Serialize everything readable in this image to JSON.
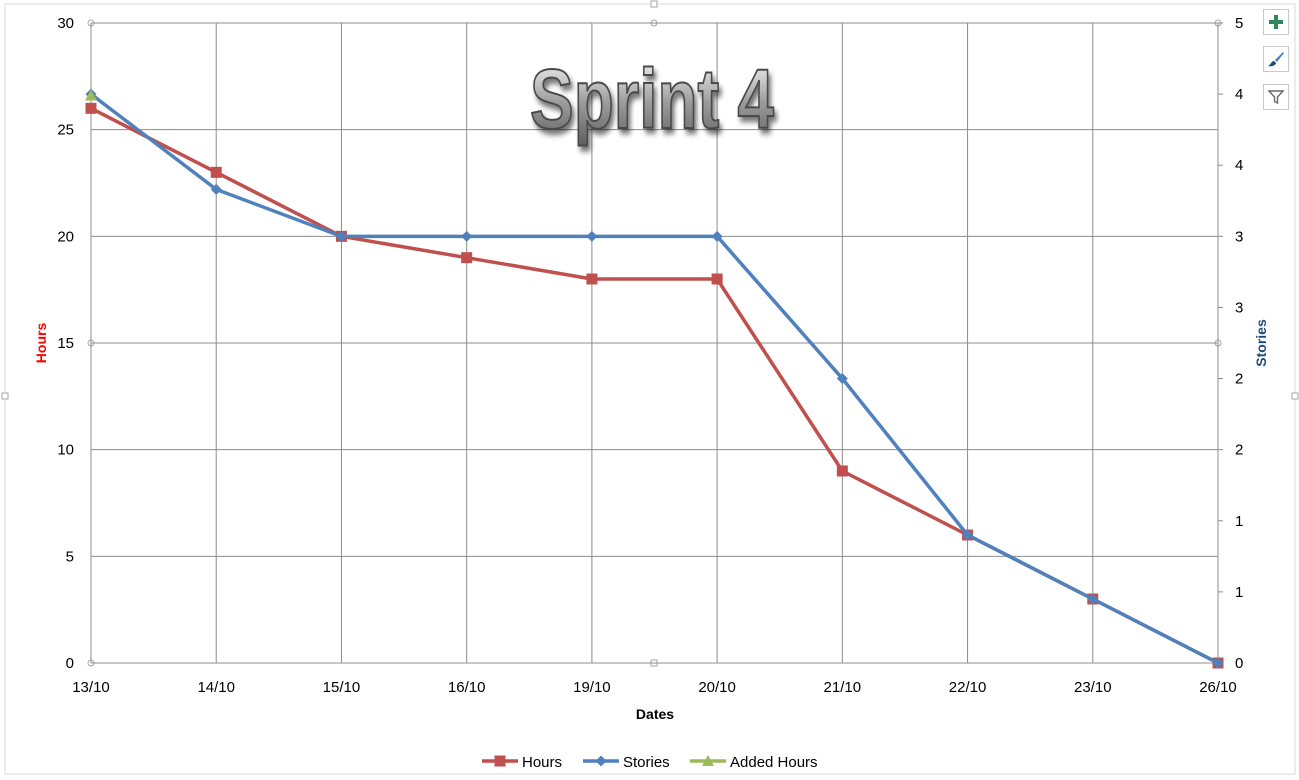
{
  "chart_data": {
    "type": "line",
    "title": "Sprint 4",
    "xlabel": "Dates",
    "ylabel": "Hours",
    "y2label": "Stories",
    "categories": [
      "13/10",
      "14/10",
      "15/10",
      "16/10",
      "19/10",
      "20/10",
      "21/10",
      "22/10",
      "23/10",
      "26/10"
    ],
    "y_ticks": [
      "0",
      "5",
      "10",
      "15",
      "20",
      "25",
      "30"
    ],
    "y2_ticks": [
      "0",
      "1",
      "1",
      "2",
      "2",
      "3",
      "3",
      "4",
      "4",
      "5"
    ],
    "ylim": [
      0,
      30
    ],
    "y2lim": [
      0,
      4.5
    ],
    "grid": true,
    "legend_position": "bottom",
    "series": [
      {
        "name": "Hours",
        "axis": "left",
        "marker": "square",
        "color": "#c0504d",
        "values": [
          26,
          23,
          20,
          19,
          18,
          18,
          9,
          6,
          3,
          0
        ]
      },
      {
        "name": "Stories",
        "axis": "right",
        "marker": "diamond",
        "color": "#4f81bd",
        "values": [
          4,
          3.33,
          3,
          3,
          3,
          3,
          2,
          0.9,
          0.45,
          0
        ]
      },
      {
        "name": "Added Hours",
        "axis": "left",
        "marker": "triangle",
        "color": "#9bbb59",
        "values": [
          26.6,
          null,
          null,
          null,
          null,
          null,
          null,
          null,
          null,
          null
        ]
      }
    ]
  },
  "side_buttons": {
    "add_icon_color": "#2e8b57",
    "brush_icon_color": "#4f81bd",
    "filter_icon_color": "#666666"
  }
}
